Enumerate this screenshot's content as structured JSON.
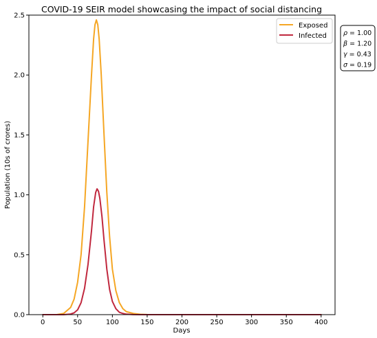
{
  "chart_data": {
    "type": "line",
    "title": "COVID-19 SEIR model showcasing the impact of social distancing",
    "xlabel": "Days",
    "ylabel": "Population (10s of crores)",
    "xlim": [
      -20,
      420
    ],
    "ylim": [
      0,
      2.5
    ],
    "xticks": [
      "0",
      "50",
      "100",
      "150",
      "200",
      "250",
      "300",
      "350",
      "400"
    ],
    "yticks": [
      "0.0",
      "0.5",
      "1.0",
      "1.5",
      "2.0",
      "2.5"
    ],
    "grid": false,
    "legend": "top-right",
    "series": [
      {
        "name": "Exposed",
        "color": "#f5a623",
        "peak_day": 77,
        "peak_value": 2.46,
        "x": [
          0,
          20,
          30,
          40,
          45,
          50,
          55,
          60,
          65,
          70,
          73,
          75,
          77,
          79,
          81,
          84,
          88,
          92,
          96,
          100,
          105,
          110,
          115,
          120,
          130,
          140,
          150,
          200,
          250,
          300,
          350,
          400
        ],
        "y": [
          0,
          0.0,
          0.01,
          0.06,
          0.13,
          0.27,
          0.5,
          0.9,
          1.45,
          2.0,
          2.3,
          2.42,
          2.46,
          2.42,
          2.3,
          2.0,
          1.5,
          1.02,
          0.65,
          0.38,
          0.2,
          0.1,
          0.05,
          0.025,
          0.01,
          0.003,
          0.001,
          0,
          0,
          0,
          0,
          0
        ]
      },
      {
        "name": "Infected",
        "color": "#c0273d",
        "peak_day": 79,
        "peak_value": 1.05,
        "x": [
          0,
          30,
          40,
          45,
          50,
          55,
          60,
          65,
          70,
          73,
          76,
          78,
          80,
          82,
          85,
          88,
          92,
          96,
          100,
          105,
          110,
          115,
          120,
          130,
          140,
          150,
          200,
          250,
          300,
          350,
          400
        ],
        "y": [
          0,
          0.0,
          0.005,
          0.015,
          0.04,
          0.1,
          0.22,
          0.42,
          0.7,
          0.9,
          1.02,
          1.05,
          1.03,
          0.97,
          0.82,
          0.62,
          0.38,
          0.21,
          0.11,
          0.05,
          0.02,
          0.01,
          0.004,
          0.001,
          0,
          0,
          0,
          0,
          0,
          0,
          0
        ]
      }
    ],
    "params_box": [
      {
        "sym": "ρ",
        "value": "1.00"
      },
      {
        "sym": "β",
        "value": "1.20"
      },
      {
        "sym": "γ",
        "value": "0.43"
      },
      {
        "sym": "σ",
        "value": "0.19"
      }
    ]
  }
}
